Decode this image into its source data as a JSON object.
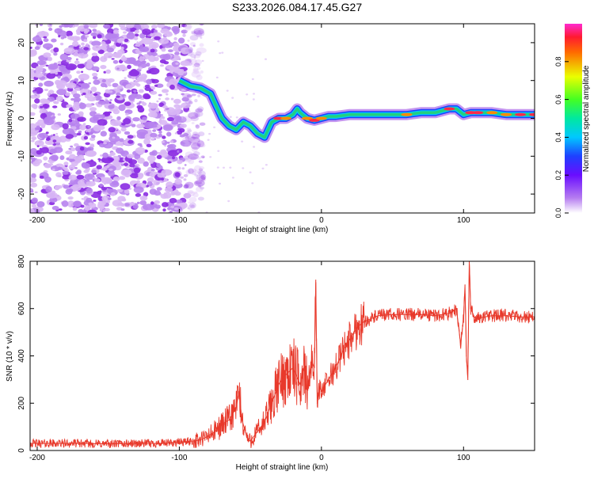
{
  "figure_title": "S233.2026.084.17.45.G27",
  "colors": {
    "snr_line": "#e8392b",
    "spectrum_ridge_hot": "#ff2a4a",
    "spectrum_ridge_mid": "#22d080",
    "spectrum_ridge_low": "#1e40ff",
    "noise_purple": "#8a2be2",
    "noise_light": "#d9b8f5"
  },
  "chart_data": [
    {
      "id": "spectrogram",
      "type": "heatmap",
      "title": "",
      "xlabel": "Height of straight line (km)",
      "ylabel": "Frequency (Hz)",
      "xlim": [
        -205,
        150
      ],
      "ylim": [
        -25,
        25
      ],
      "xticks": [
        -200,
        -100,
        0,
        100
      ],
      "yticks": [
        -20,
        -10,
        0,
        10,
        20
      ],
      "colorbar": {
        "label": "Normalized spectral amplitude",
        "range": [
          0.0,
          1.0
        ],
        "ticks": [
          0.0,
          0.2,
          0.4,
          0.6,
          0.8
        ],
        "tick_labels": [
          "0.0",
          "0.2",
          "0.4",
          "0.6",
          "0.8"
        ],
        "colormap": "rainbow (white to purple to blue to cyan to green to yellow to red to magenta)"
      },
      "noise_region_x": [
        -205,
        -95
      ],
      "ridge": {
        "x": [
          -100,
          -92,
          -85,
          -78,
          -75,
          -70,
          -65,
          -60,
          -55,
          -50,
          -45,
          -40,
          -35,
          -30,
          -25,
          -20,
          -17,
          -15,
          -10,
          -5,
          0,
          5,
          10,
          20,
          30,
          40,
          50,
          60,
          70,
          80,
          85,
          90,
          95,
          100,
          105,
          110,
          120,
          130,
          140,
          150
        ],
        "freq": [
          10,
          8.5,
          8,
          6.5,
          4,
          0,
          -2,
          -3,
          -1,
          -2,
          -4,
          -5,
          -1,
          0,
          0,
          1,
          2.5,
          1.5,
          0,
          -0.5,
          0,
          0.5,
          0.5,
          1,
          1,
          1,
          1,
          1,
          1.5,
          1.5,
          2,
          2.5,
          2.5,
          1,
          1.5,
          1.5,
          1.5,
          1,
          1,
          1
        ],
        "amplitude": [
          0.3,
          0.35,
          0.3,
          0.3,
          0.25,
          0.3,
          0.3,
          0.35,
          0.3,
          0.3,
          0.35,
          0.35,
          0.5,
          0.9,
          0.8,
          0.6,
          0.5,
          0.5,
          0.8,
          0.9,
          0.8,
          0.6,
          0.7,
          0.6,
          0.55,
          0.6,
          0.55,
          0.85,
          0.7,
          0.65,
          0.75,
          0.9,
          0.7,
          0.55,
          0.95,
          0.95,
          0.85,
          0.8,
          0.9,
          0.9
        ]
      }
    },
    {
      "id": "snr",
      "type": "line",
      "title": "",
      "xlabel": "Height of straight line (km)",
      "ylabel": "SNR (10 * v/v)",
      "xlim": [
        -205,
        150
      ],
      "ylim": [
        0,
        800
      ],
      "xticks": [
        -200,
        -100,
        0,
        100
      ],
      "yticks": [
        0,
        200,
        400,
        600,
        800
      ],
      "series": [
        {
          "name": "SNR",
          "x": [
            -205,
            -190,
            -170,
            -150,
            -130,
            -110,
            -100,
            -90,
            -85,
            -80,
            -75,
            -70,
            -65,
            -60,
            -58,
            -56,
            -52,
            -50,
            -45,
            -40,
            -35,
            -30,
            -28,
            -25,
            -20,
            -15,
            -12,
            -10,
            -7,
            -5,
            -4,
            -3,
            -1,
            0,
            5,
            10,
            15,
            20,
            25,
            30,
            40,
            50,
            60,
            70,
            80,
            90,
            95,
            98,
            100,
            101,
            102,
            103,
            104,
            105,
            108,
            110,
            120,
            130,
            140,
            150
          ],
          "values": [
            30,
            30,
            30,
            28,
            30,
            30,
            35,
            40,
            45,
            60,
            80,
            110,
            130,
            180,
            250,
            130,
            50,
            40,
            80,
            120,
            200,
            280,
            300,
            320,
            350,
            280,
            350,
            260,
            380,
            350,
            720,
            200,
            280,
            250,
            300,
            350,
            420,
            470,
            520,
            545,
            570,
            575,
            575,
            575,
            570,
            580,
            600,
            450,
            560,
            700,
            400,
            300,
            800,
            600,
            560,
            560,
            570,
            570,
            565,
            565
          ]
        }
      ]
    }
  ]
}
